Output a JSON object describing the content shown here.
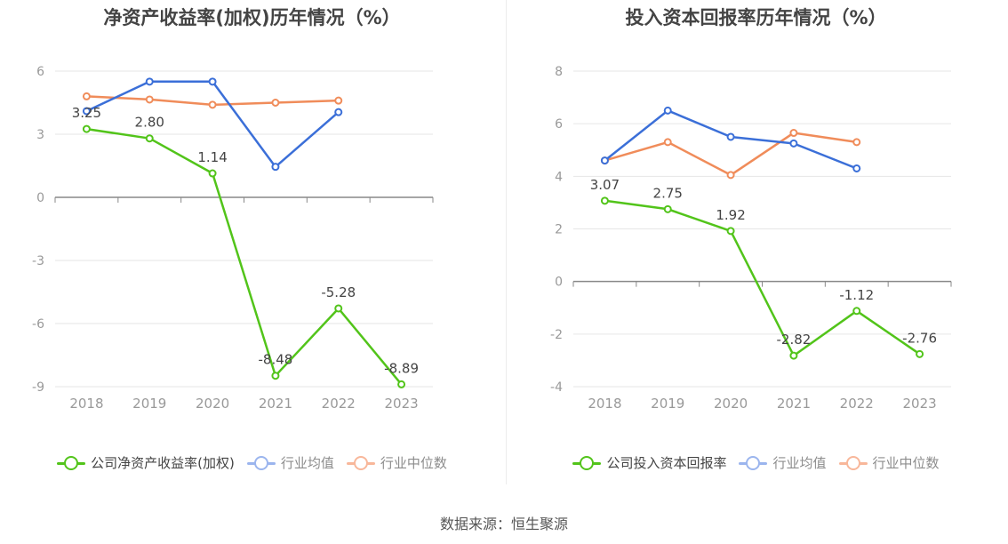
{
  "source": "数据来源：恒生聚源",
  "chart_data": [
    {
      "type": "line",
      "title": "净资产收益率(加权)历年情况（%）",
      "categories": [
        "2018",
        "2019",
        "2020",
        "2021",
        "2022",
        "2023"
      ],
      "ylim": [
        -9,
        6
      ],
      "yticks": [
        -9,
        -6,
        -3,
        0,
        3,
        6
      ],
      "grid": true,
      "legend_position": "bottom",
      "series": [
        {
          "name": "公司净资产收益率(加权)",
          "color": "#52c41a",
          "values": [
            3.25,
            2.8,
            1.14,
            -8.48,
            -5.28,
            -8.89
          ],
          "labels": [
            "3.25",
            "2.80",
            "1.14",
            "-8.48",
            "-5.28",
            "-8.89"
          ]
        },
        {
          "name": "行业均值",
          "color": "#3b6fd8",
          "legend_color": "#9bb5ee",
          "values": [
            4.1,
            5.5,
            5.5,
            1.45,
            4.05,
            null
          ]
        },
        {
          "name": "行业中位数",
          "color": "#f08c5a",
          "legend_color": "#f8b79a",
          "values": [
            4.8,
            4.65,
            4.4,
            4.5,
            4.6,
            null
          ]
        }
      ]
    },
    {
      "type": "line",
      "title": "投入资本回报率历年情况（%）",
      "categories": [
        "2018",
        "2019",
        "2020",
        "2021",
        "2022",
        "2023"
      ],
      "ylim": [
        -4,
        8
      ],
      "yticks": [
        -4,
        -2,
        0,
        2,
        4,
        6,
        8
      ],
      "grid": true,
      "legend_position": "bottom",
      "series": [
        {
          "name": "公司投入资本回报率",
          "color": "#52c41a",
          "values": [
            3.07,
            2.75,
            1.92,
            -2.82,
            -1.12,
            -2.76
          ],
          "labels": [
            "3.07",
            "2.75",
            "1.92",
            "-2.82",
            "-1.12",
            "-2.76"
          ]
        },
        {
          "name": "行业均值",
          "color": "#3b6fd8",
          "legend_color": "#9bb5ee",
          "values": [
            4.6,
            6.5,
            5.5,
            5.25,
            4.3,
            null
          ]
        },
        {
          "name": "行业中位数",
          "color": "#f08c5a",
          "legend_color": "#f8b79a",
          "values": [
            4.6,
            5.3,
            4.05,
            5.65,
            5.3,
            null
          ]
        }
      ]
    }
  ]
}
